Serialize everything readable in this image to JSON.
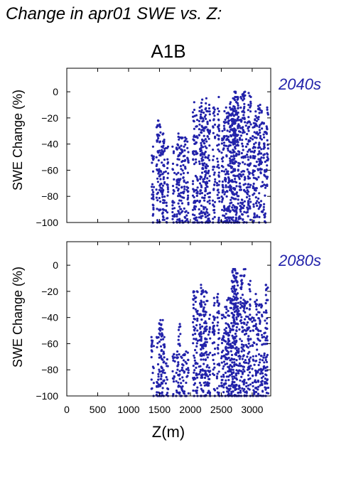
{
  "page_title": "Change in apr01 SWE vs. Z:",
  "scenario": "A1B",
  "colors": {
    "points": "#2222aa",
    "period_label": "#2222aa",
    "axes": "#000000"
  },
  "chart_data": [
    {
      "type": "scatter",
      "title": "2040s",
      "xlabel": "",
      "ylabel": "SWE Change (%)",
      "xlim": [
        0,
        3300
      ],
      "ylim": [
        -100,
        18
      ],
      "yticks": [
        0,
        -20,
        -40,
        -60,
        -80,
        -100
      ],
      "ytick_labels": [
        "0",
        "−20",
        "−40",
        "−60",
        "−80",
        "−100"
      ],
      "xticks": [
        0,
        500,
        1000,
        1500,
        2000,
        2500,
        3000
      ],
      "grid": false,
      "series": [
        {
          "x_columns": [
            1390,
            1470,
            1510,
            1545,
            1570,
            1620,
            1730,
            1790,
            1820,
            1860,
            1900,
            1950,
            2060,
            2100,
            2160,
            2190,
            2230,
            2260,
            2300,
            2380,
            2450,
            2520,
            2560,
            2600,
            2630,
            2660,
            2690,
            2710,
            2730,
            2760,
            2790,
            2830,
            2870,
            2920,
            2960,
            3020,
            3060,
            3110,
            3150,
            3200,
            3240
          ],
          "y_top": [
            -42,
            -22,
            -25,
            -42,
            -32,
            -42,
            -42,
            -32,
            -35,
            -35,
            -35,
            -36,
            -8,
            -18,
            -12,
            -6,
            -16,
            -5,
            -10,
            -12,
            -4,
            -30,
            -12,
            -16,
            -12,
            -8,
            -5,
            0,
            0,
            -4,
            -16,
            -2,
            0,
            -14,
            -1,
            -24,
            -15,
            -10,
            -14,
            -24,
            -12
          ],
          "y_bottom": [
            -100,
            -100,
            -100,
            -98,
            -98,
            -100,
            -100,
            -100,
            -100,
            -100,
            -100,
            -100,
            -100,
            -100,
            -100,
            -100,
            -100,
            -100,
            -100,
            -100,
            -100,
            -100,
            -100,
            -100,
            -100,
            -100,
            -100,
            -100,
            -100,
            -100,
            -100,
            -98,
            -100,
            -100,
            -98,
            -100,
            -96,
            -100,
            -92,
            -100,
            -72
          ]
        }
      ]
    },
    {
      "type": "scatter",
      "title": "2080s",
      "xlabel": "Z(m)",
      "ylabel": "SWE Change (%)",
      "xlim": [
        0,
        3300
      ],
      "ylim": [
        -100,
        18
      ],
      "yticks": [
        0,
        -20,
        -40,
        -60,
        -80,
        -100
      ],
      "ytick_labels": [
        "0",
        "−20",
        "−40",
        "−60",
        "−80",
        "−100"
      ],
      "xticks": [
        0,
        500,
        1000,
        1500,
        2000,
        2500,
        3000
      ],
      "xtick_labels": [
        "0",
        "500",
        "1000",
        "1500",
        "2000",
        "2500",
        "3000"
      ],
      "grid": false,
      "series": [
        {
          "x_columns": [
            1390,
            1470,
            1510,
            1545,
            1570,
            1620,
            1730,
            1790,
            1820,
            1860,
            1900,
            1950,
            2060,
            2100,
            2160,
            2190,
            2230,
            2260,
            2300,
            2380,
            2450,
            2520,
            2560,
            2600,
            2630,
            2660,
            2690,
            2710,
            2730,
            2760,
            2790,
            2830,
            2870,
            2920,
            2960,
            3020,
            3060,
            3110,
            3150,
            3200,
            3240
          ],
          "y_top": [
            -55,
            -55,
            -42,
            -42,
            -55,
            -72,
            -68,
            -66,
            -45,
            -70,
            -68,
            -66,
            -20,
            -20,
            -28,
            -15,
            -24,
            -20,
            -38,
            -25,
            -22,
            -38,
            -32,
            -25,
            -35,
            -18,
            -3,
            -3,
            -3,
            -6,
            -35,
            -8,
            -3,
            -28,
            -12,
            -40,
            -22,
            -30,
            -30,
            -36,
            -15
          ],
          "y_bottom": [
            -100,
            -100,
            -100,
            -100,
            -100,
            -100,
            -100,
            -100,
            -100,
            -100,
            -100,
            -100,
            -100,
            -100,
            -100,
            -100,
            -100,
            -100,
            -100,
            -100,
            -100,
            -100,
            -100,
            -100,
            -100,
            -100,
            -100,
            -100,
            -100,
            -100,
            -100,
            -100,
            -100,
            -100,
            -100,
            -100,
            -100,
            -100,
            -100,
            -100,
            -98
          ]
        }
      ]
    }
  ]
}
